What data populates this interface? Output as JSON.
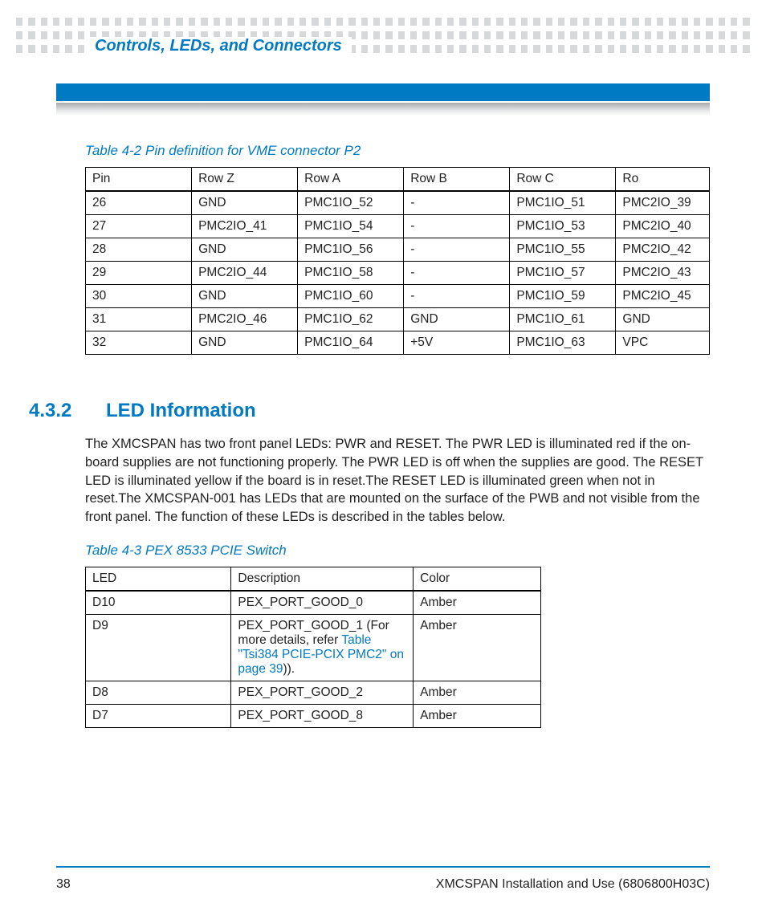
{
  "header": {
    "chapter_title": "Controls, LEDs, and Connectors",
    "dot_color": "#d7d8d9",
    "bar_color": "#007ac2"
  },
  "table42": {
    "caption": "Table 4-2 Pin definition for VME connector P2",
    "columns": [
      "Pin",
      "Row Z",
      "Row A",
      "Row B",
      "Row C",
      "Ro"
    ],
    "rows": [
      [
        "26",
        "GND",
        "PMC1IO_52",
        "-",
        "PMC1IO_51",
        "PMC2IO_39"
      ],
      [
        "27",
        "PMC2IO_41",
        "PMC1IO_54",
        "-",
        "PMC1IO_53",
        "PMC2IO_40"
      ],
      [
        "28",
        "GND",
        "PMC1IO_56",
        "-",
        "PMC1IO_55",
        "PMC2IO_42"
      ],
      [
        "29",
        "PMC2IO_44",
        "PMC1IO_58",
        "-",
        "PMC1IO_57",
        "PMC2IO_43"
      ],
      [
        "30",
        "GND",
        "PMC1IO_60",
        "-",
        "PMC1IO_59",
        "PMC2IO_45"
      ],
      [
        "31",
        "PMC2IO_46",
        "PMC1IO_62",
        "GND",
        "PMC1IO_61",
        "GND"
      ],
      [
        "32",
        "GND",
        "PMC1IO_64",
        "+5V",
        "PMC1IO_63",
        "VPC"
      ]
    ],
    "col_widths": [
      "17%",
      "17%",
      "17%",
      "17%",
      "17%",
      "15%"
    ]
  },
  "section": {
    "number": "4.3.2",
    "title": "LED Information",
    "body": "The XMCSPAN has two front panel LEDs: PWR and RESET. The PWR LED is illuminated red if the on-board supplies are not functioning properly. The PWR LED is off when the supplies are good. The RESET LED is illuminated yellow if the board is in reset.The RESET LED is illuminated green when not in reset.The XMCSPAN-001 has LEDs that are mounted on the surface of the PWB and not visible from the front panel. The function of these LEDs is described in the tables below."
  },
  "table43": {
    "caption": "Table 4-3 PEX 8533 PCIE Switch",
    "columns": [
      "LED",
      "Description",
      "Color"
    ],
    "col_widths": [
      "32%",
      "40%",
      "28%"
    ],
    "rows": [
      {
        "led": "D10",
        "desc_plain": "PEX_PORT_GOOD_0",
        "color": "Amber"
      },
      {
        "led": "D9",
        "desc_prefix": "PEX_PORT_GOOD_1 (For more details, refer ",
        "desc_link": "Table \"Tsi384 PCIE-PCIX PMC2\" on page 39",
        "desc_suffix": ")).",
        "color": "Amber"
      },
      {
        "led": "D8",
        "desc_plain": "PEX_PORT_GOOD_2",
        "color": "Amber"
      },
      {
        "led": "D7",
        "desc_plain": "PEX_PORT_GOOD_8",
        "color": "Amber"
      }
    ]
  },
  "footer": {
    "page_number": "38",
    "doc_title": "XMCSPAN Installation and Use (6806800H03C)"
  },
  "colors": {
    "brand_blue": "#007ac2",
    "text": "#222222",
    "dot": "#d7d8d9"
  }
}
